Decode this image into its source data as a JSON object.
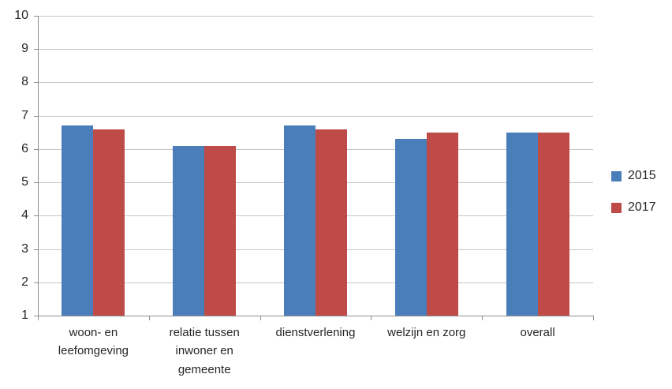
{
  "chart_data": {
    "type": "bar",
    "title": "",
    "categories": [
      "woon- en leefomgeving",
      "relatie tussen inwoner en gemeente",
      "dienstverlening",
      "welzijn en zorg",
      "overall"
    ],
    "series": [
      {
        "name": "2015",
        "color": "#4A7EBB",
        "values": [
          6.7,
          6.1,
          6.7,
          6.3,
          6.5
        ]
      },
      {
        "name": "2017",
        "color": "#BE4B48",
        "values": [
          6.6,
          6.1,
          6.6,
          6.5,
          6.5
        ]
      }
    ],
    "ylim": [
      1,
      10
    ],
    "ytick_step": 1,
    "yticks": [
      1,
      2,
      3,
      4,
      5,
      6,
      7,
      8,
      9,
      10
    ],
    "grid": true,
    "legend_position": "right",
    "xlabel": "",
    "ylabel": ""
  },
  "colors": {
    "gridline": "#c6c6c6",
    "axis": "#8e8e8e",
    "text": "#262626",
    "background": "#ffffff"
  }
}
